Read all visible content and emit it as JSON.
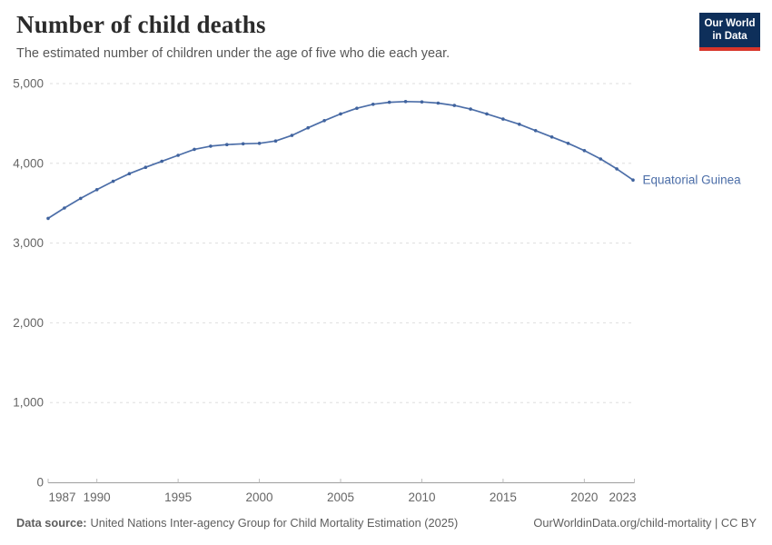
{
  "header": {
    "title": "Number of child deaths",
    "subtitle": "The estimated number of children under the age of five who die each year.",
    "logo": {
      "line1": "Our World",
      "line2": "in Data"
    }
  },
  "chart_data": {
    "type": "line",
    "title": "Number of child deaths",
    "xlabel": "",
    "ylabel": "",
    "xlim": [
      1987,
      2023
    ],
    "ylim": [
      0,
      5000
    ],
    "grid": "horizontal-dashed",
    "legend": "inline-end-label",
    "x_ticks": [
      1987,
      1990,
      1995,
      2000,
      2005,
      2010,
      2015,
      2020,
      2023
    ],
    "y_ticks": [
      0,
      1000,
      2000,
      3000,
      4000,
      5000
    ],
    "y_tick_labels": [
      "0",
      "1,000",
      "2,000",
      "3,000",
      "4,000",
      "5,000"
    ],
    "x": [
      1987,
      1988,
      1989,
      1990,
      1991,
      1992,
      1993,
      1994,
      1995,
      1996,
      1997,
      1998,
      1999,
      2000,
      2001,
      2002,
      2003,
      2004,
      2005,
      2006,
      2007,
      2008,
      2009,
      2010,
      2011,
      2012,
      2013,
      2014,
      2015,
      2016,
      2017,
      2018,
      2019,
      2020,
      2021,
      2022,
      2023
    ],
    "series": [
      {
        "name": "Equatorial Guinea",
        "color": "#4C6EA8",
        "marker_color": "#40639E",
        "values": [
          3310,
          3440,
          3560,
          3670,
          3775,
          3870,
          3950,
          4025,
          4100,
          4175,
          4215,
          4235,
          4245,
          4250,
          4280,
          4350,
          4445,
          4535,
          4620,
          4690,
          4740,
          4765,
          4775,
          4770,
          4755,
          4725,
          4680,
          4620,
          4555,
          4490,
          4410,
          4330,
          4250,
          4160,
          4055,
          3930,
          3790
        ]
      }
    ]
  },
  "footer": {
    "source_label": "Data source:",
    "source_text": "United Nations Inter-agency Group for Child Mortality Estimation (2025)",
    "link_text": "OurWorldinData.org/child-mortality | CC BY"
  },
  "colors": {
    "line": "#4C6EA8",
    "logo_bg": "#0E2F5A",
    "logo_bar": "#D8352A",
    "gridline": "#dedede",
    "axis": "#9e9e9e",
    "tick": "#bdbdbd",
    "tick_label": "#666666"
  }
}
